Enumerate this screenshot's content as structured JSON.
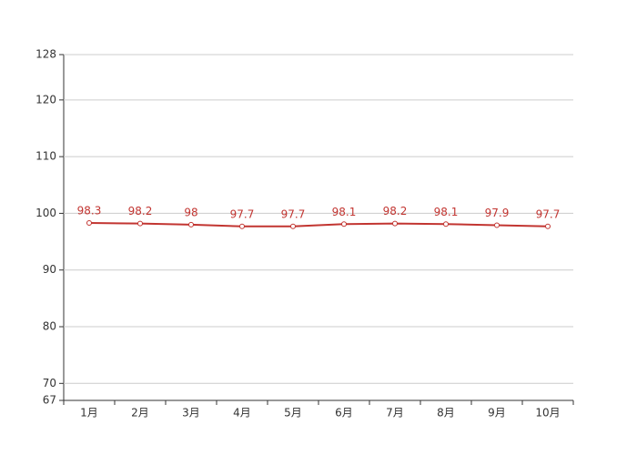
{
  "chart_data": {
    "type": "line",
    "categories": [
      "1月",
      "2月",
      "3月",
      "4月",
      "5月",
      "6月",
      "7月",
      "8月",
      "9月",
      "10月"
    ],
    "series": [
      {
        "name": "value",
        "color": "#c23531",
        "values": [
          98.3,
          98.2,
          98,
          97.7,
          97.7,
          98.1,
          98.2,
          98.1,
          97.9,
          97.7
        ]
      }
    ],
    "ylim": [
      67,
      128
    ],
    "yticks": [
      67,
      70,
      80,
      90,
      100,
      110,
      120,
      128
    ],
    "grid": true
  }
}
